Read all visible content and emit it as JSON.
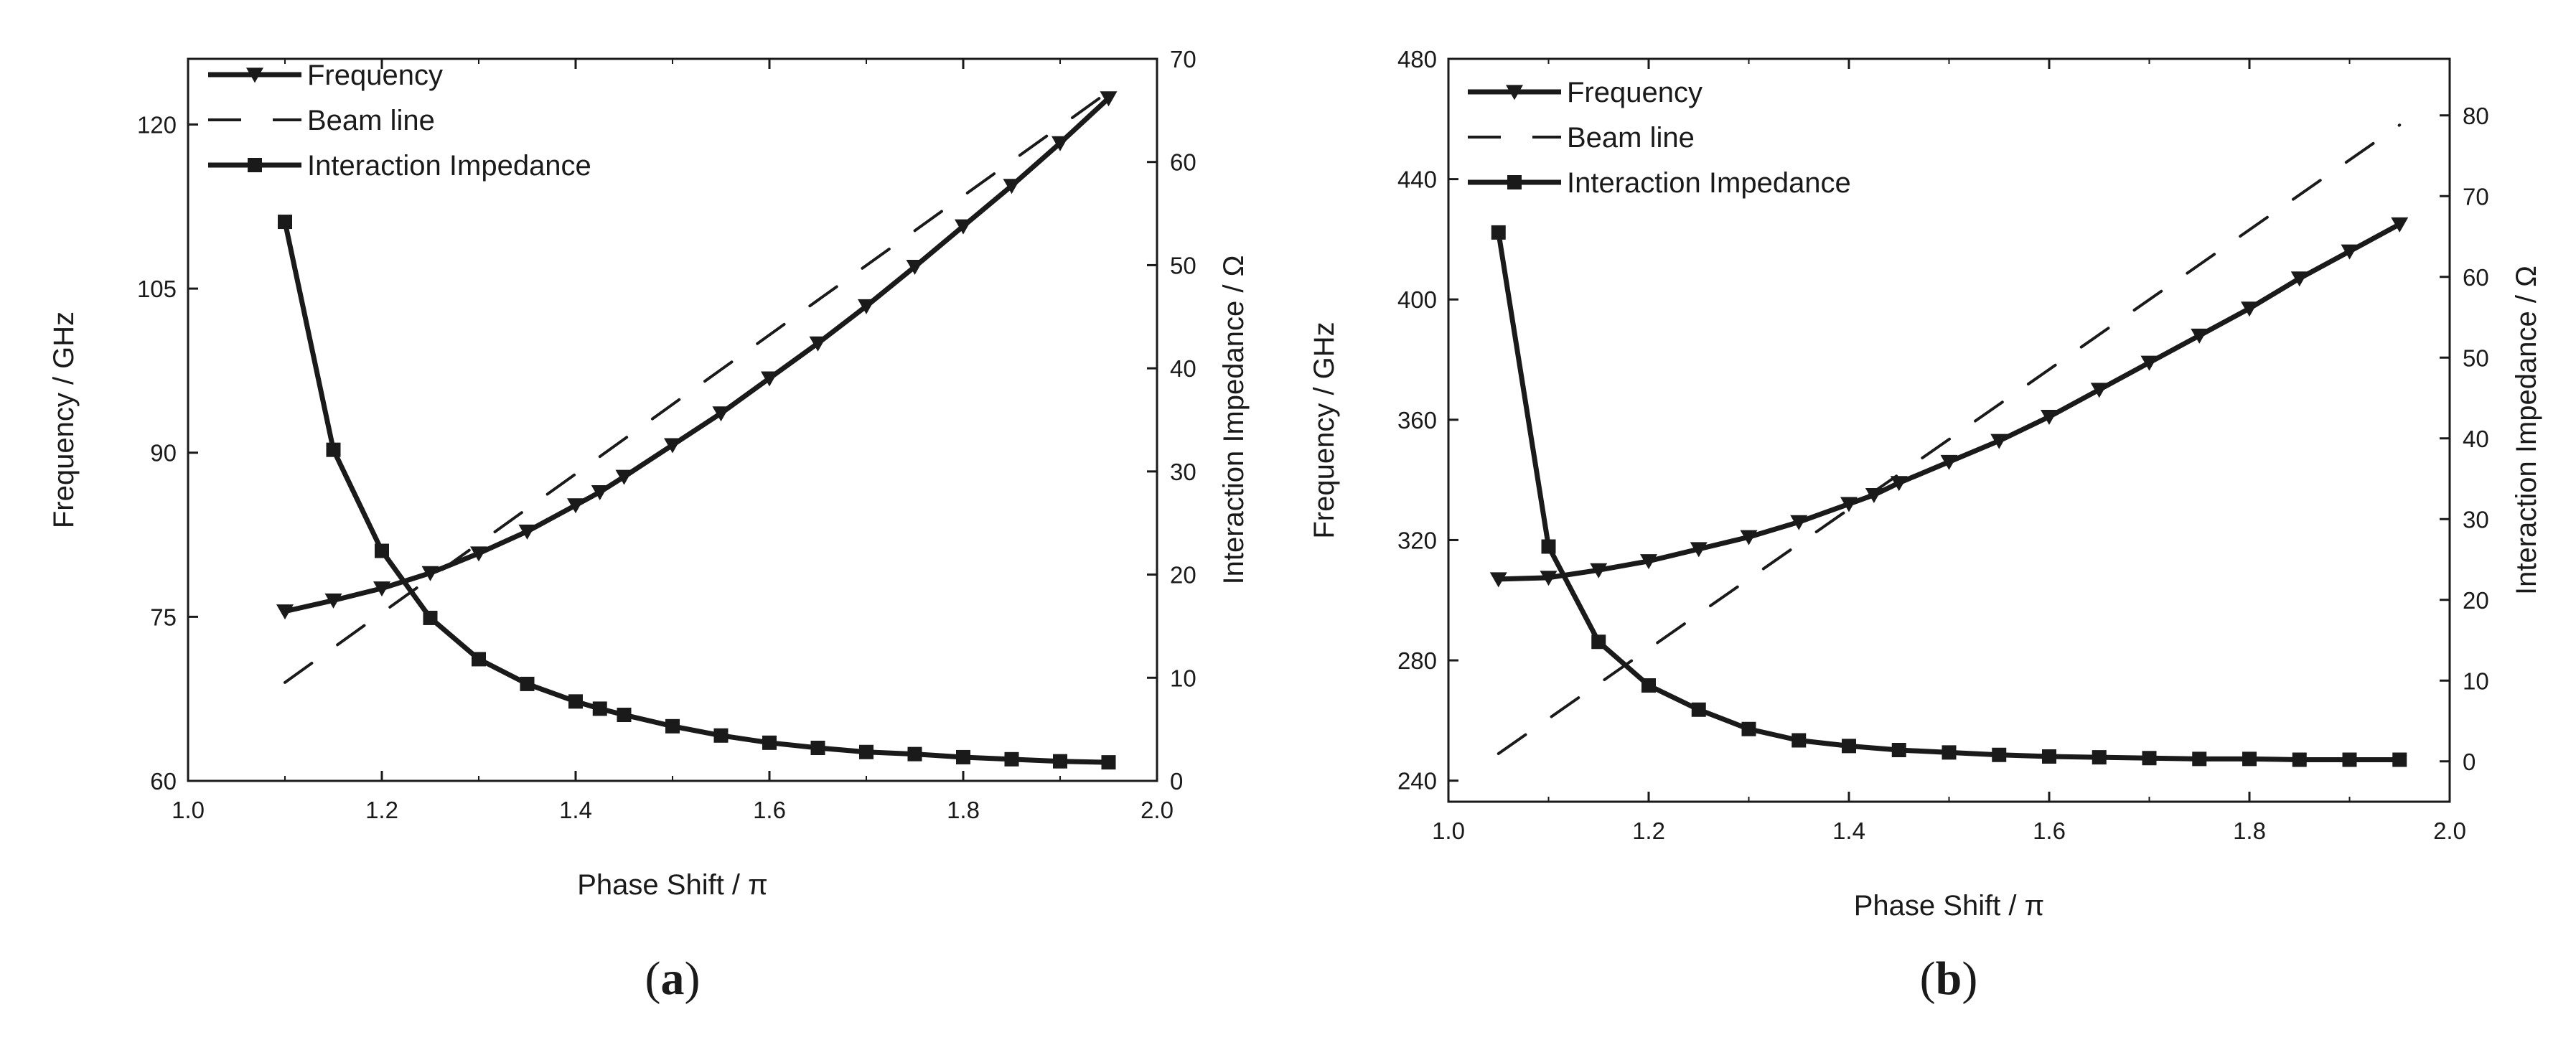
{
  "chart_data": [
    {
      "type": "line",
      "panel_label": "a",
      "xlabel": "Phase Shift / π",
      "ylabel_left": "Frequency / GHz",
      "ylabel_right": "Interaction Impedance / Ω",
      "xlim": [
        1.0,
        2.0
      ],
      "ylim_left": [
        60,
        126
      ],
      "ylim_right": [
        0,
        70
      ],
      "x_ticks": [
        1.0,
        1.2,
        1.4,
        1.6,
        1.8,
        2.0
      ],
      "x_tick_labels": [
        "1.0",
        "1.2",
        "1.4",
        "1.6",
        "1.8",
        "2.0"
      ],
      "y_left_ticks": [
        60,
        75,
        90,
        105,
        120
      ],
      "y_left_tick_labels": [
        "60",
        "75",
        "90",
        "105",
        "120"
      ],
      "y_right_ticks": [
        0,
        10,
        20,
        30,
        40,
        50,
        60,
        70
      ],
      "y_right_tick_labels": [
        "0",
        "10",
        "20",
        "30",
        "40",
        "50",
        "60",
        "70"
      ],
      "legend": [
        "Frequency",
        "Beam line",
        "Interaction Impedance"
      ],
      "legend_position": "top-left",
      "series": [
        {
          "name": "Frequency",
          "axis": "left",
          "marker": "triangle-down",
          "x": [
            1.1,
            1.15,
            1.2,
            1.25,
            1.3,
            1.35,
            1.4,
            1.425,
            1.45,
            1.5,
            1.55,
            1.6,
            1.65,
            1.7,
            1.75,
            1.8,
            1.85,
            1.9,
            1.95
          ],
          "y": [
            75.5,
            76.5,
            77.6,
            79.0,
            80.8,
            82.8,
            85.2,
            86.4,
            87.8,
            90.7,
            93.6,
            96.8,
            100.0,
            103.4,
            107.0,
            110.7,
            114.4,
            118.3,
            122.4
          ]
        },
        {
          "name": "Beam line",
          "axis": "left",
          "dashed": true,
          "x": [
            1.1,
            1.95
          ],
          "y": [
            69.0,
            123.0
          ]
        },
        {
          "name": "Interaction Impedance",
          "axis": "right",
          "marker": "square",
          "x": [
            1.1,
            1.15,
            1.2,
            1.25,
            1.3,
            1.35,
            1.4,
            1.425,
            1.45,
            1.5,
            1.55,
            1.6,
            1.65,
            1.7,
            1.75,
            1.8,
            1.85,
            1.9,
            1.95
          ],
          "y": [
            54.2,
            32.1,
            22.3,
            15.8,
            11.8,
            9.4,
            7.7,
            7.0,
            6.4,
            5.3,
            4.4,
            3.7,
            3.2,
            2.8,
            2.6,
            2.3,
            2.1,
            1.9,
            1.8
          ]
        }
      ]
    },
    {
      "type": "line",
      "panel_label": "b",
      "xlabel": "Phase Shift / π",
      "ylabel_left": "Frequency / GHz",
      "ylabel_right": "Interaction Impedance / Ω",
      "xlim": [
        1.0,
        2.0
      ],
      "ylim_left": [
        233,
        480
      ],
      "ylim_right": [
        -5,
        87
      ],
      "x_ticks": [
        1.0,
        1.2,
        1.4,
        1.6,
        1.8,
        2.0
      ],
      "x_tick_labels": [
        "1.0",
        "1.2",
        "1.4",
        "1.6",
        "1.8",
        "2.0"
      ],
      "y_left_ticks": [
        240,
        280,
        320,
        360,
        400,
        440,
        480
      ],
      "y_left_tick_labels": [
        "240",
        "280",
        "320",
        "360",
        "400",
        "440",
        "480"
      ],
      "y_right_ticks": [
        0,
        10,
        20,
        30,
        40,
        50,
        60,
        70,
        80
      ],
      "y_right_tick_labels": [
        "0",
        "10",
        "20",
        "30",
        "40",
        "50",
        "60",
        "70",
        "80"
      ],
      "legend": [
        "Frequency",
        "Beam line",
        "Interaction Impedance"
      ],
      "legend_position": "top-left",
      "series": [
        {
          "name": "Frequency",
          "axis": "left",
          "marker": "triangle-down",
          "x": [
            1.05,
            1.1,
            1.15,
            1.2,
            1.25,
            1.3,
            1.35,
            1.4,
            1.425,
            1.45,
            1.5,
            1.55,
            1.6,
            1.65,
            1.7,
            1.75,
            1.8,
            1.85,
            1.9,
            1.95
          ],
          "y": [
            307,
            307.5,
            310,
            313,
            317,
            321,
            326,
            332,
            335,
            339,
            346,
            353,
            361,
            370,
            379,
            388,
            397,
            407,
            416,
            425
          ]
        },
        {
          "name": "Beam line",
          "axis": "left",
          "dashed": true,
          "x": [
            1.05,
            1.95
          ],
          "y": [
            249,
            458
          ]
        },
        {
          "name": "Interaction Impedance",
          "axis": "right",
          "marker": "square",
          "x": [
            1.05,
            1.1,
            1.15,
            1.2,
            1.25,
            1.3,
            1.35,
            1.4,
            1.45,
            1.5,
            1.55,
            1.6,
            1.65,
            1.7,
            1.75,
            1.8,
            1.85,
            1.9,
            1.95
          ],
          "y": [
            65.5,
            26.6,
            14.8,
            9.4,
            6.4,
            4.0,
            2.6,
            1.9,
            1.4,
            1.1,
            0.8,
            0.6,
            0.5,
            0.4,
            0.3,
            0.3,
            0.2,
            0.2,
            0.2
          ]
        }
      ]
    }
  ]
}
